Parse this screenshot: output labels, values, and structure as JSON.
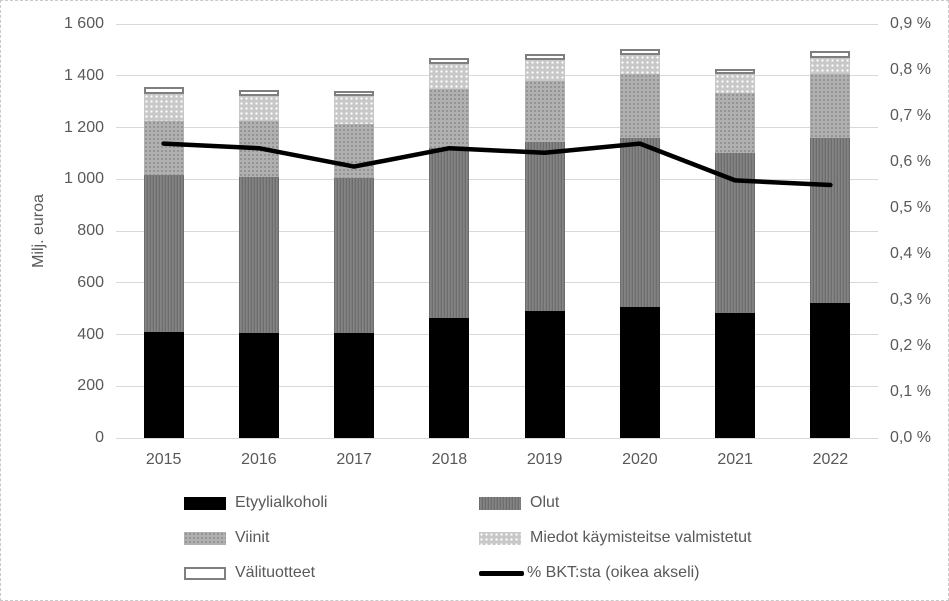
{
  "chart_data": {
    "type": "combo: stacked-bar + line, dual axis",
    "title": "",
    "categories": [
      "2015",
      "2016",
      "2017",
      "2018",
      "2019",
      "2020",
      "2021",
      "2022"
    ],
    "series": [
      {
        "name": "Etyylialkoholi",
        "type": "bar",
        "axis": "left",
        "color": "#000000",
        "values": [
          410,
          405,
          405,
          465,
          490,
          505,
          485,
          520
        ]
      },
      {
        "name": "Olut",
        "type": "bar",
        "axis": "left",
        "color": "#7c7c7c",
        "values": [
          605,
          605,
          600,
          655,
          655,
          655,
          615,
          640
        ]
      },
      {
        "name": "Viinit",
        "type": "bar",
        "axis": "left",
        "color": "#b0b0b0",
        "values": [
          210,
          215,
          210,
          230,
          235,
          245,
          235,
          245
        ]
      },
      {
        "name": "Miedot käymisteitse valmistetut",
        "type": "bar",
        "axis": "left",
        "color": "#c8c8c8",
        "values": [
          105,
          95,
          105,
          95,
          80,
          75,
          70,
          65
        ]
      },
      {
        "name": "Välituotteet",
        "type": "bar",
        "axis": "left",
        "color": "#ffffff",
        "border_color": "#7f7f7f",
        "values": [
          25,
          25,
          20,
          25,
          25,
          25,
          20,
          25
        ]
      },
      {
        "name": "% BKT:sta (oikea akseli)",
        "type": "line",
        "axis": "right",
        "color": "#000000",
        "values": [
          0.64,
          0.63,
          0.59,
          0.63,
          0.62,
          0.64,
          0.56,
          0.55
        ]
      }
    ],
    "bar_totals": [
      1355,
      1345,
      1340,
      1470,
      1485,
      1505,
      1425,
      1495
    ],
    "left_axis": {
      "label": "Milj. euroa",
      "min": 0,
      "max": 1600,
      "step": 200,
      "tick_labels": [
        "1 600",
        "1 400",
        "1 200",
        "1 000",
        "800",
        "600",
        "400",
        "200",
        "0"
      ]
    },
    "right_axis": {
      "label": "",
      "min": 0,
      "max": 0.9,
      "step": 0.1,
      "tick_labels": [
        "0,9 %",
        "0,8 %",
        "0,7 %",
        "0,6 %",
        "0,5 %",
        "0,4 %",
        "0,3 %",
        "0,2 %",
        "0,1 %",
        "0,0 %"
      ]
    },
    "grid": true,
    "legend_position": "bottom",
    "colors": {
      "gridline": "#d9d9d9",
      "axis_text": "#595959",
      "line_series": "#000000",
      "chart_border": "#c9c9c9"
    }
  }
}
